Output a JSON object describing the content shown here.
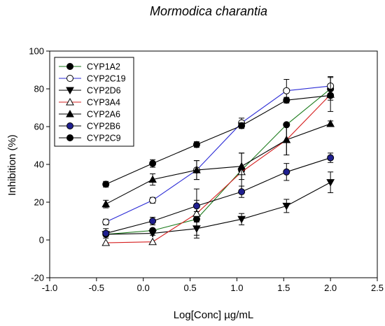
{
  "chart_data": {
    "type": "line",
    "title": "Mormodica charantia",
    "xlabel": "Log[Conc] µg/mL",
    "ylabel": "Inhibition (%)",
    "xlim": [
      -1.0,
      2.5
    ],
    "ylim": [
      -20,
      100
    ],
    "xticks": [
      "-1.0",
      "-0.5",
      "0.0",
      "0.5",
      "1.0",
      "1.5",
      "2.0",
      "2.5"
    ],
    "yticks": [
      "-20",
      "0",
      "20",
      "40",
      "60",
      "80",
      "100"
    ],
    "grid": false,
    "legend_position": "top-left",
    "x": [
      -0.4,
      0.1,
      0.57,
      1.05,
      1.53,
      2.0
    ],
    "series": [
      {
        "name": "CYP1A2",
        "color": "#1a7a1a",
        "marker": "circle-filled",
        "marker_color": "#000000",
        "values": [
          3,
          5,
          11,
          37,
          61,
          80
        ],
        "errors": [
          0,
          0,
          0,
          0,
          0,
          0
        ]
      },
      {
        "name": "CYP2C19",
        "color": "#2b2bd6",
        "marker": "circle-open",
        "marker_color": "#000000",
        "values": [
          9.5,
          21,
          37,
          62,
          79,
          81.5
        ],
        "errors": [
          1.5,
          1.5,
          5,
          2.5,
          6,
          5
        ]
      },
      {
        "name": "CYP2D6",
        "color": "#000000",
        "marker": "triangle-down-filled",
        "marker_color": "#000000",
        "values": [
          3,
          3.5,
          6,
          11,
          18,
          30.5
        ],
        "errors": [
          1,
          1,
          3.5,
          3,
          3.5,
          5.5
        ]
      },
      {
        "name": "CYP3A4",
        "color": "#d62020",
        "marker": "triangle-up-open",
        "marker_color": "#000000",
        "values": [
          -1.5,
          -1,
          14,
          36,
          53,
          77
        ],
        "errors": [
          0,
          0,
          13,
          10,
          8,
          9
        ]
      },
      {
        "name": "CYP2A6",
        "color": "#000000",
        "marker": "triangle-up-filled",
        "marker_color": "#000000",
        "values": [
          19,
          32,
          37,
          39,
          53,
          61.5
        ],
        "errors": [
          2,
          3,
          5,
          7,
          8,
          1.5
        ]
      },
      {
        "name": "CYP2B6",
        "color": "#000000",
        "marker": "circle-filled",
        "marker_color": "#1f1f8f",
        "values": [
          3.5,
          10,
          18,
          25.5,
          36,
          43.5
        ],
        "errors": [
          2.5,
          2,
          3,
          3,
          4.5,
          2.5
        ]
      },
      {
        "name": "CYP2C9",
        "color": "#000000",
        "marker": "circle-filled",
        "marker_color": "#000000",
        "values": [
          29.5,
          40.5,
          50.5,
          60.5,
          74,
          76.5
        ],
        "errors": [
          1.5,
          2,
          1.5,
          1.5,
          1.5,
          2.5
        ]
      }
    ]
  }
}
